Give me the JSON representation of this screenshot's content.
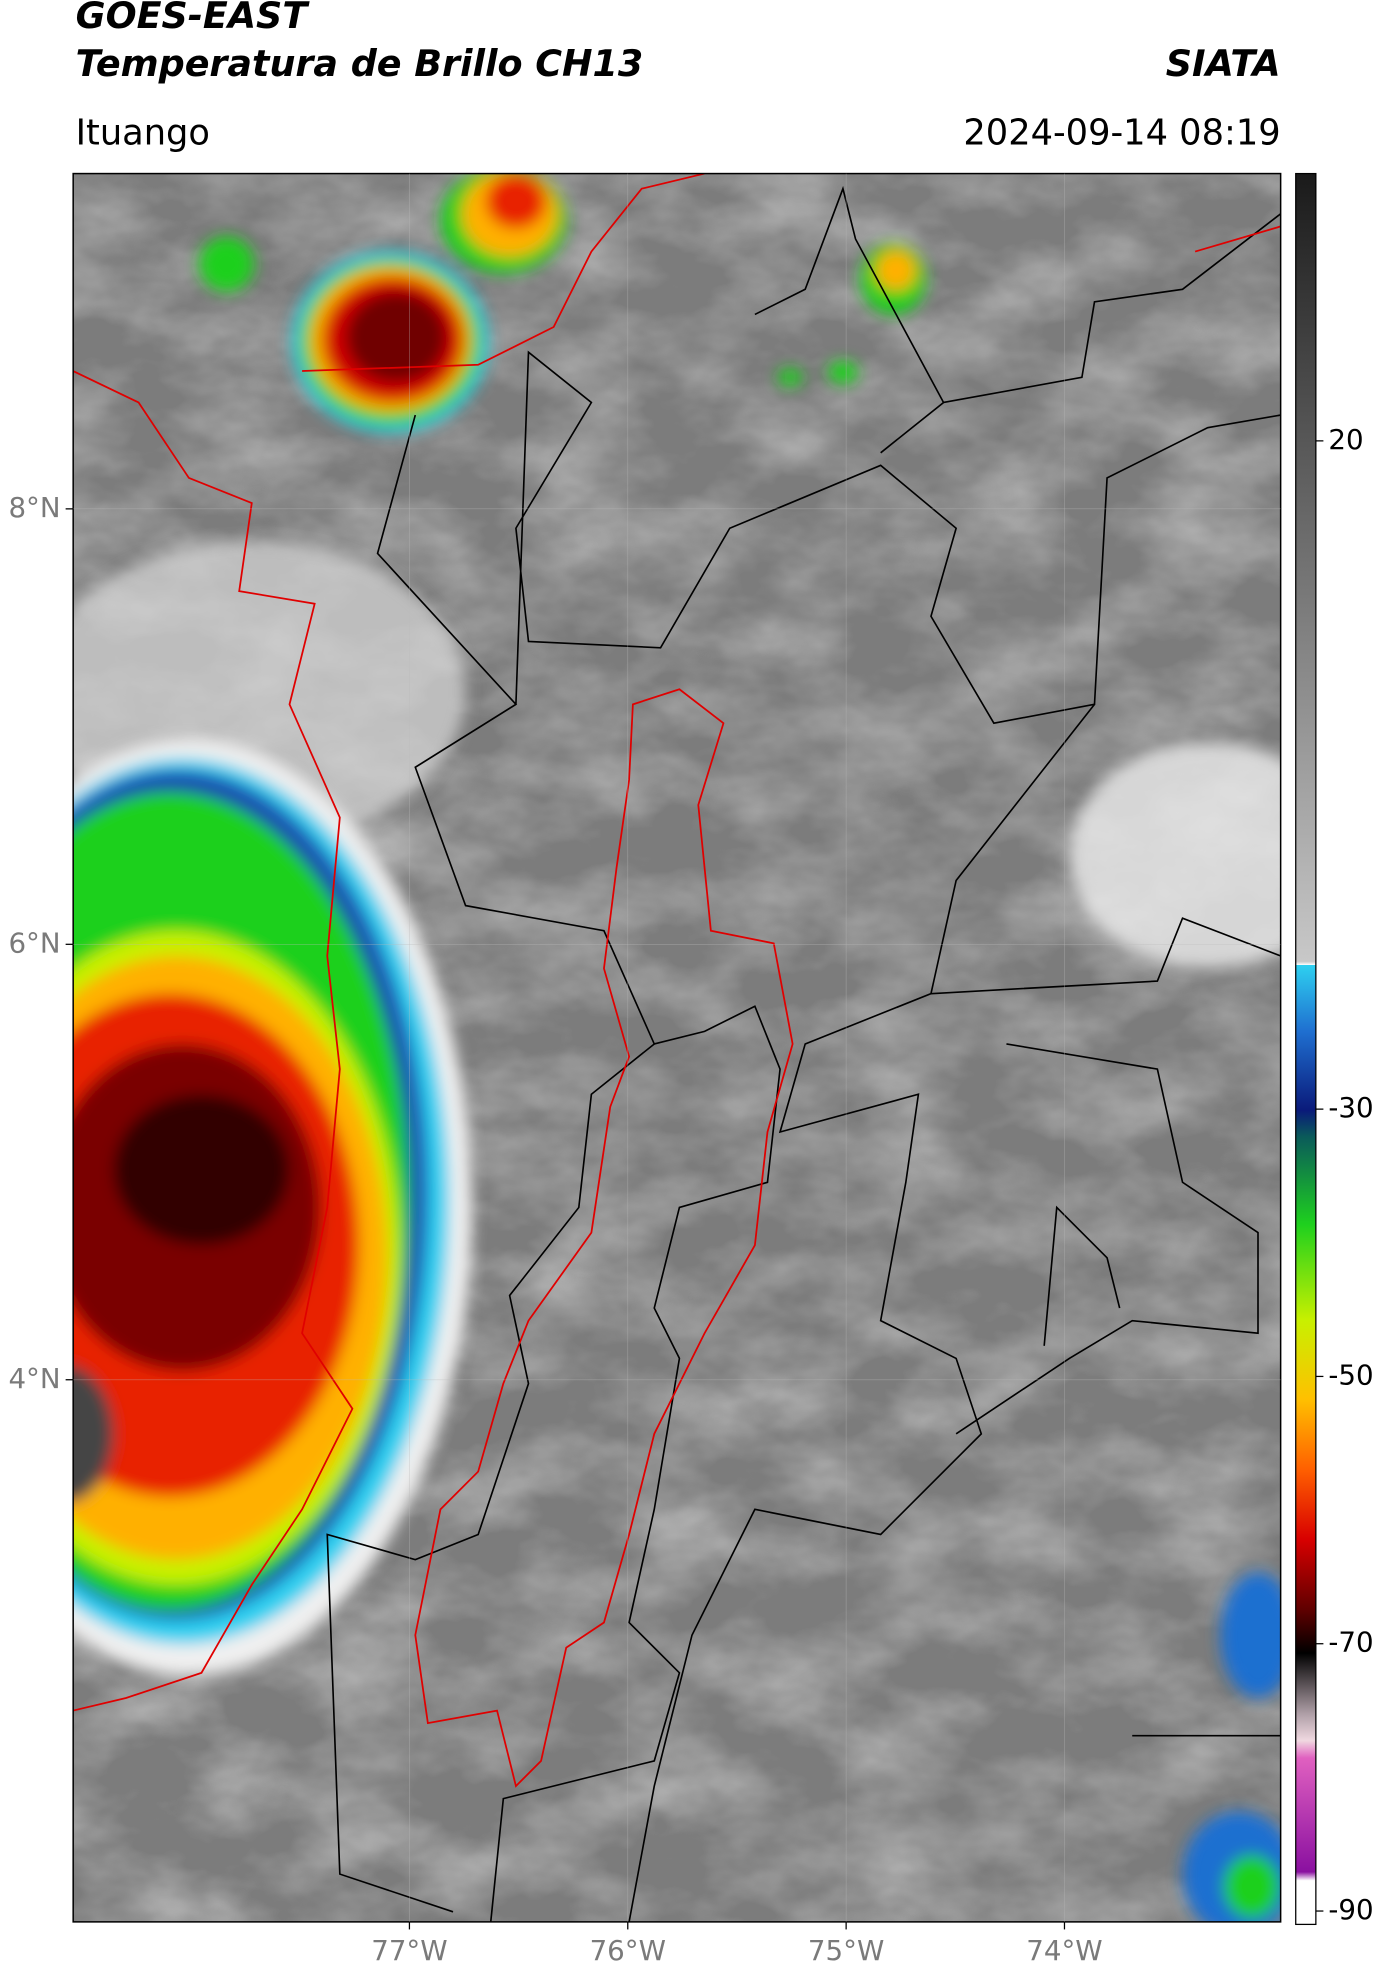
{
  "header": {
    "title": "GOES-EAST",
    "subtitle": "Temperatura de Brillo CH13",
    "agency": "SIATA",
    "location": "Ituango",
    "timestamp": "2024-09-14 08:19"
  },
  "map": {
    "xlim": [
      -78.54,
      -73.01
    ],
    "ylim": [
      1.51,
      9.54
    ],
    "xticks": [
      {
        "value": -77,
        "label": "77°W"
      },
      {
        "value": -76,
        "label": "76°W"
      },
      {
        "value": -75,
        "label": "75°W"
      },
      {
        "value": -74,
        "label": "74°W"
      }
    ],
    "yticks": [
      {
        "value": 8,
        "label": "8°N"
      },
      {
        "value": 6,
        "label": "6°N"
      },
      {
        "value": 4,
        "label": "4°N"
      }
    ]
  },
  "colorbar": {
    "lim": [
      -91,
      40
    ],
    "ticks": [
      20,
      -30,
      -50,
      -70,
      -90
    ]
  }
}
